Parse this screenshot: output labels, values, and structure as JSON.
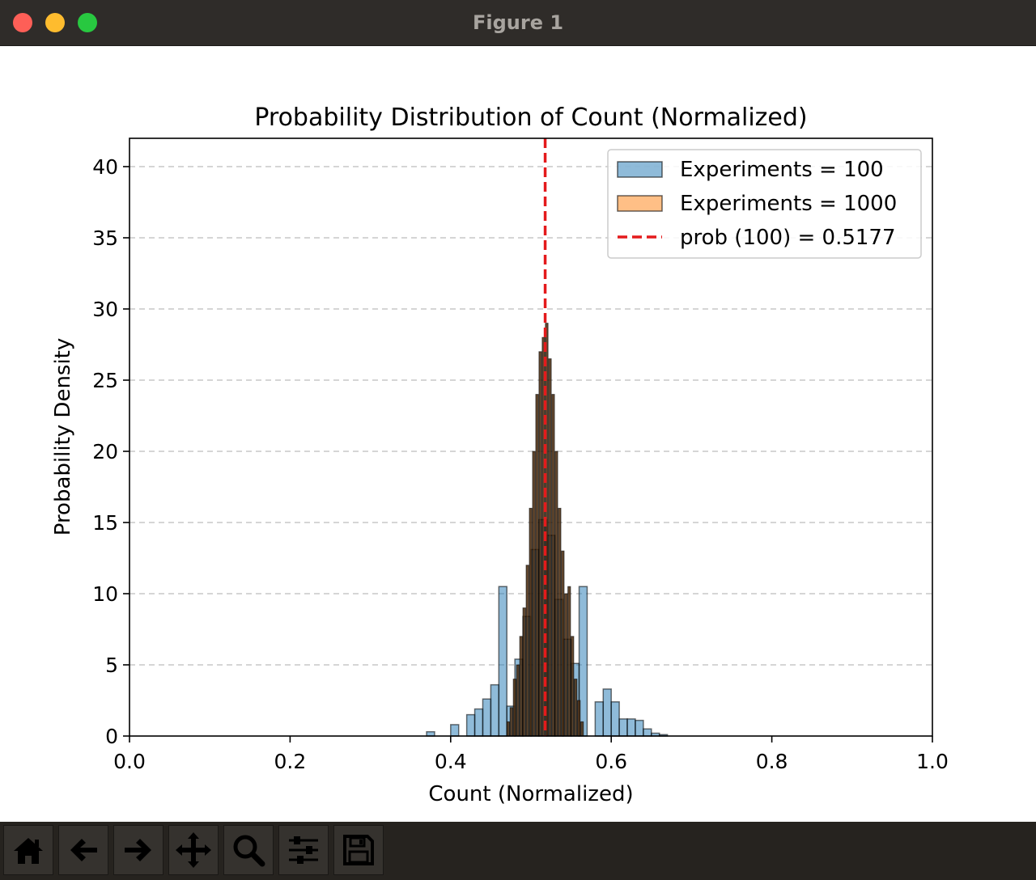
{
  "window": {
    "title": "Figure 1"
  },
  "toolbar": {
    "buttons": [
      {
        "name": "home-button",
        "icon": "home-icon"
      },
      {
        "name": "back-button",
        "icon": "arrow-left-icon"
      },
      {
        "name": "forward-button",
        "icon": "arrow-right-icon"
      },
      {
        "name": "pan-button",
        "icon": "move-icon"
      },
      {
        "name": "zoom-button",
        "icon": "magnifier-icon"
      },
      {
        "name": "configure-subplots-button",
        "icon": "sliders-icon"
      },
      {
        "name": "save-button",
        "icon": "floppy-disk-icon"
      }
    ]
  },
  "chart_data": {
    "type": "bar",
    "title": "Probability Distribution of Count (Normalized)",
    "xlabel": "Count (Normalized)",
    "ylabel": "Probability Density",
    "xlim": [
      0.0,
      1.0
    ],
    "ylim": [
      0,
      42
    ],
    "xticks": [
      "0.0",
      "0.2",
      "0.4",
      "0.6",
      "0.8",
      "1.0"
    ],
    "yticks": [
      "0",
      "5",
      "10",
      "15",
      "20",
      "25",
      "30",
      "35",
      "40"
    ],
    "grid": "y-dashed",
    "legend_position": "top-right",
    "series": [
      {
        "name": "Experiments = 100",
        "kind": "histogram",
        "color": "#1f77b4",
        "bin_width": 0.01,
        "bins": [
          [
            0.37,
            0.3
          ],
          [
            0.4,
            0.8
          ],
          [
            0.42,
            1.5
          ],
          [
            0.43,
            1.9
          ],
          [
            0.44,
            2.6
          ],
          [
            0.45,
            3.6
          ],
          [
            0.46,
            10.5
          ],
          [
            0.47,
            2.1
          ],
          [
            0.48,
            5.4
          ],
          [
            0.49,
            8.4
          ],
          [
            0.5,
            13.1
          ],
          [
            0.51,
            15.2
          ],
          [
            0.52,
            14.1
          ],
          [
            0.53,
            9.6
          ],
          [
            0.54,
            6.8
          ],
          [
            0.55,
            5.1
          ],
          [
            0.56,
            10.5
          ],
          [
            0.58,
            2.4
          ],
          [
            0.59,
            3.3
          ],
          [
            0.6,
            2.4
          ],
          [
            0.61,
            1.2
          ],
          [
            0.62,
            1.2
          ],
          [
            0.63,
            1.1
          ],
          [
            0.64,
            0.5
          ],
          [
            0.65,
            0.2
          ],
          [
            0.66,
            0.1
          ]
        ]
      },
      {
        "name": "Experiments = 1000",
        "kind": "histogram",
        "color": "#ff7f0e",
        "bin_width": 0.0033,
        "bins": [
          [
            0.47,
            1.0
          ],
          [
            0.474,
            2.0
          ],
          [
            0.478,
            4.0
          ],
          [
            0.482,
            5.0
          ],
          [
            0.486,
            7.0
          ],
          [
            0.49,
            9.0
          ],
          [
            0.494,
            12.0
          ],
          [
            0.498,
            16.0
          ],
          [
            0.502,
            20.0
          ],
          [
            0.506,
            24.0
          ],
          [
            0.51,
            27.0
          ],
          [
            0.514,
            28.0
          ],
          [
            0.518,
            29.0
          ],
          [
            0.522,
            26.5
          ],
          [
            0.526,
            24.0
          ],
          [
            0.53,
            20.0
          ],
          [
            0.534,
            16.0
          ],
          [
            0.538,
            13.0
          ],
          [
            0.542,
            10.0
          ],
          [
            0.546,
            10.5
          ],
          [
            0.55,
            7.0
          ],
          [
            0.554,
            4.0
          ],
          [
            0.558,
            2.5
          ],
          [
            0.562,
            1.0
          ]
        ]
      }
    ],
    "vline": {
      "name": "prob (100) = 0.5177",
      "x": 0.5177,
      "color": "#e41a1c",
      "style": "dashed"
    },
    "legend": [
      {
        "label": "Experiments = 100",
        "type": "patch",
        "color": "#1f77b4"
      },
      {
        "label": "Experiments = 1000",
        "type": "patch",
        "color": "#ff7f0e"
      },
      {
        "label": "prob (100) = 0.5177",
        "type": "dashed-line",
        "color": "#e41a1c"
      }
    ]
  }
}
